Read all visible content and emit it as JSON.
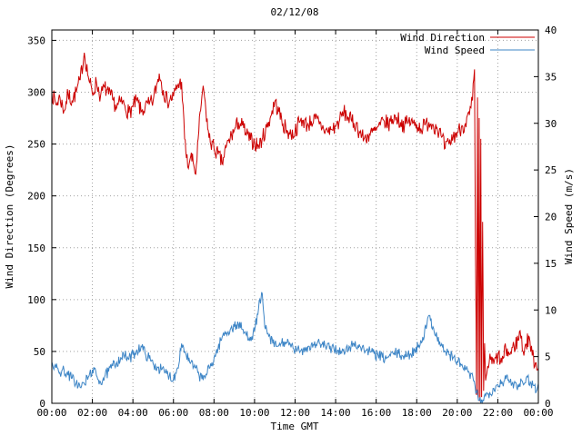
{
  "chart_data": {
    "type": "line",
    "title": "02/12/08",
    "xlabel": "Time GMT",
    "ylabel": "Wind Direction (Degrees)",
    "y2label": "Wind Speed (m/s)",
    "x_range_hours": [
      0,
      24
    ],
    "y_range": [
      0,
      360
    ],
    "y2_range": [
      0,
      40
    ],
    "y_ticks": [
      0,
      50,
      100,
      150,
      200,
      250,
      300,
      350
    ],
    "y2_ticks": [
      0,
      5,
      10,
      15,
      20,
      25,
      30,
      35,
      40
    ],
    "x_tick_hours": [
      0,
      2,
      4,
      6,
      8,
      10,
      12,
      14,
      16,
      18,
      20,
      22,
      24
    ],
    "x_tick_labels": [
      "00:00",
      "02:00",
      "04:00",
      "06:00",
      "08:00",
      "10:00",
      "12:00",
      "14:00",
      "16:00",
      "18:00",
      "20:00",
      "22:00",
      "00:00"
    ],
    "grid": true,
    "legend_position": "top-right",
    "background": "#ffffff",
    "grid_color": "#a0a0a0",
    "border_color": "#000000",
    "series": [
      {
        "name": "Wind Direction",
        "axis": "y1",
        "color": "#cc0000",
        "points": [
          [
            0,
            300
          ],
          [
            0.2,
            288
          ],
          [
            0.4,
            295
          ],
          [
            0.6,
            282
          ],
          [
            0.8,
            298
          ],
          [
            1.0,
            292
          ],
          [
            1.2,
            300
          ],
          [
            1.4,
            312
          ],
          [
            1.6,
            338
          ],
          [
            1.8,
            315
          ],
          [
            2.0,
            298
          ],
          [
            2.2,
            310
          ],
          [
            2.4,
            296
          ],
          [
            2.6,
            305
          ],
          [
            2.8,
            298
          ],
          [
            3.0,
            293
          ],
          [
            3.2,
            285
          ],
          [
            3.4,
            291
          ],
          [
            3.6,
            287
          ],
          [
            3.8,
            280
          ],
          [
            4.0,
            286
          ],
          [
            4.2,
            292
          ],
          [
            4.4,
            281
          ],
          [
            4.6,
            285
          ],
          [
            4.8,
            288
          ],
          [
            5.0,
            292
          ],
          [
            5.3,
            318
          ],
          [
            5.5,
            302
          ],
          [
            5.7,
            291
          ],
          [
            6.0,
            296
          ],
          [
            6.2,
            306
          ],
          [
            6.4,
            310
          ],
          [
            6.55,
            255
          ],
          [
            6.7,
            228
          ],
          [
            6.85,
            238
          ],
          [
            7.0,
            230
          ],
          [
            7.1,
            221
          ],
          [
            7.25,
            262
          ],
          [
            7.4,
            296
          ],
          [
            7.5,
            301
          ],
          [
            7.6,
            282
          ],
          [
            7.75,
            256
          ],
          [
            8.0,
            246
          ],
          [
            8.2,
            240
          ],
          [
            8.4,
            231
          ],
          [
            8.6,
            247
          ],
          [
            8.8,
            256
          ],
          [
            9.0,
            263
          ],
          [
            9.2,
            271
          ],
          [
            9.4,
            268
          ],
          [
            9.6,
            259
          ],
          [
            9.8,
            254
          ],
          [
            10.0,
            251
          ],
          [
            10.2,
            248
          ],
          [
            10.4,
            256
          ],
          [
            10.6,
            266
          ],
          [
            10.8,
            277
          ],
          [
            11.0,
            291
          ],
          [
            11.2,
            281
          ],
          [
            11.4,
            269
          ],
          [
            11.6,
            263
          ],
          [
            11.8,
            259
          ],
          [
            12.0,
            262
          ],
          [
            12.2,
            271
          ],
          [
            12.4,
            273
          ],
          [
            12.6,
            268
          ],
          [
            12.8,
            272
          ],
          [
            13.0,
            274
          ],
          [
            13.2,
            269
          ],
          [
            13.4,
            265
          ],
          [
            13.6,
            262
          ],
          [
            13.8,
            264
          ],
          [
            14.0,
            267
          ],
          [
            14.2,
            273
          ],
          [
            14.4,
            281
          ],
          [
            14.6,
            276
          ],
          [
            14.8,
            272
          ],
          [
            15.0,
            269
          ],
          [
            15.2,
            261
          ],
          [
            15.4,
            255
          ],
          [
            15.6,
            258
          ],
          [
            15.8,
            261
          ],
          [
            16.0,
            263
          ],
          [
            16.2,
            268
          ],
          [
            16.4,
            272
          ],
          [
            16.6,
            269
          ],
          [
            16.8,
            274
          ],
          [
            17.0,
            276
          ],
          [
            17.2,
            271
          ],
          [
            17.4,
            268
          ],
          [
            17.6,
            272
          ],
          [
            17.8,
            270
          ],
          [
            18.0,
            269
          ],
          [
            18.2,
            265
          ],
          [
            18.4,
            268
          ],
          [
            18.6,
            271
          ],
          [
            18.8,
            269
          ],
          [
            19.0,
            266
          ],
          [
            19.2,
            258
          ],
          [
            19.4,
            246
          ],
          [
            19.6,
            250
          ],
          [
            19.8,
            257
          ],
          [
            20.0,
            261
          ],
          [
            20.2,
            266
          ],
          [
            20.4,
            270
          ],
          [
            20.6,
            278
          ],
          [
            20.75,
            292
          ],
          [
            20.85,
            322
          ],
          [
            20.9,
            140
          ],
          [
            20.95,
            8
          ],
          [
            21.0,
            295
          ],
          [
            21.04,
            4
          ],
          [
            21.08,
            275
          ],
          [
            21.12,
            2
          ],
          [
            21.16,
            255
          ],
          [
            21.2,
            6
          ],
          [
            21.25,
            175
          ],
          [
            21.3,
            12
          ],
          [
            21.35,
            58
          ],
          [
            21.4,
            22
          ],
          [
            21.5,
            36
          ],
          [
            21.65,
            42
          ],
          [
            21.8,
            38
          ],
          [
            22.0,
            46
          ],
          [
            22.2,
            39
          ],
          [
            22.4,
            52
          ],
          [
            22.6,
            47
          ],
          [
            22.8,
            55
          ],
          [
            23.0,
            61
          ],
          [
            23.1,
            70
          ],
          [
            23.25,
            50
          ],
          [
            23.4,
            57
          ],
          [
            23.55,
            64
          ],
          [
            23.7,
            46
          ],
          [
            23.85,
            39
          ],
          [
            24.0,
            34
          ]
        ]
      },
      {
        "name": "Wind Speed",
        "axis": "y2",
        "color": "#3d85c6",
        "points": [
          [
            0,
            4.4
          ],
          [
            0.2,
            3.8
          ],
          [
            0.4,
            3.3
          ],
          [
            0.6,
            3.6
          ],
          [
            0.8,
            3.0
          ],
          [
            1.0,
            2.7
          ],
          [
            1.2,
            2.2
          ],
          [
            1.4,
            1.7
          ],
          [
            1.6,
            2.1
          ],
          [
            1.8,
            2.8
          ],
          [
            2.0,
            3.6
          ],
          [
            2.2,
            3.0
          ],
          [
            2.4,
            2.3
          ],
          [
            2.6,
            2.8
          ],
          [
            2.8,
            3.4
          ],
          [
            3.0,
            4.0
          ],
          [
            3.2,
            4.4
          ],
          [
            3.4,
            4.9
          ],
          [
            3.6,
            5.1
          ],
          [
            3.8,
            4.7
          ],
          [
            4.0,
            5.2
          ],
          [
            4.2,
            5.7
          ],
          [
            4.4,
            6.1
          ],
          [
            4.6,
            5.4
          ],
          [
            4.8,
            4.8
          ],
          [
            5.0,
            4.2
          ],
          [
            5.2,
            3.9
          ],
          [
            5.4,
            3.6
          ],
          [
            5.6,
            3.3
          ],
          [
            5.8,
            3.0
          ],
          [
            6.0,
            2.6
          ],
          [
            6.2,
            3.8
          ],
          [
            6.4,
            6.4
          ],
          [
            6.6,
            5.4
          ],
          [
            6.8,
            4.4
          ],
          [
            7.0,
            3.9
          ],
          [
            7.2,
            3.3
          ],
          [
            7.4,
            2.6
          ],
          [
            7.6,
            3.1
          ],
          [
            7.8,
            3.8
          ],
          [
            8.0,
            4.8
          ],
          [
            8.2,
            5.9
          ],
          [
            8.4,
            7.1
          ],
          [
            8.6,
            7.6
          ],
          [
            8.8,
            7.9
          ],
          [
            9.0,
            8.2
          ],
          [
            9.2,
            8.5
          ],
          [
            9.4,
            7.9
          ],
          [
            9.6,
            7.3
          ],
          [
            9.8,
            7.1
          ],
          [
            10.0,
            7.7
          ],
          [
            10.2,
            10.2
          ],
          [
            10.35,
            11.9
          ],
          [
            10.5,
            8.2
          ],
          [
            10.7,
            7.2
          ],
          [
            10.9,
            6.4
          ],
          [
            11.1,
            6.1
          ],
          [
            11.3,
            6.4
          ],
          [
            11.5,
            6.6
          ],
          [
            11.7,
            6.2
          ],
          [
            11.9,
            5.9
          ],
          [
            12.1,
            5.6
          ],
          [
            12.3,
            5.7
          ],
          [
            12.5,
            5.9
          ],
          [
            12.7,
            6.1
          ],
          [
            12.9,
            6.3
          ],
          [
            13.1,
            6.5
          ],
          [
            13.3,
            6.3
          ],
          [
            13.5,
            6.1
          ],
          [
            13.7,
            5.8
          ],
          [
            13.9,
            6.0
          ],
          [
            14.1,
            5.7
          ],
          [
            14.3,
            5.4
          ],
          [
            14.5,
            5.6
          ],
          [
            14.7,
            6.0
          ],
          [
            14.9,
            6.4
          ],
          [
            15.1,
            6.2
          ],
          [
            15.3,
            5.9
          ],
          [
            15.5,
            5.7
          ],
          [
            15.7,
            5.5
          ],
          [
            15.9,
            5.3
          ],
          [
            16.1,
            5.1
          ],
          [
            16.3,
            4.9
          ],
          [
            16.5,
            4.8
          ],
          [
            16.7,
            5.1
          ],
          [
            16.9,
            5.4
          ],
          [
            17.1,
            5.3
          ],
          [
            17.3,
            5.1
          ],
          [
            17.5,
            5.0
          ],
          [
            17.7,
            5.3
          ],
          [
            17.9,
            5.7
          ],
          [
            18.1,
            6.2
          ],
          [
            18.3,
            7.1
          ],
          [
            18.5,
            8.4
          ],
          [
            18.65,
            9.4
          ],
          [
            18.8,
            8.2
          ],
          [
            19.0,
            7.1
          ],
          [
            19.2,
            6.2
          ],
          [
            19.4,
            5.6
          ],
          [
            19.6,
            5.2
          ],
          [
            19.8,
            4.9
          ],
          [
            20.0,
            4.5
          ],
          [
            20.2,
            4.1
          ],
          [
            20.4,
            3.6
          ],
          [
            20.6,
            3.2
          ],
          [
            20.8,
            2.4
          ],
          [
            20.95,
            1.2
          ],
          [
            21.05,
            0.3
          ],
          [
            21.2,
            0.4
          ],
          [
            21.4,
            0.8
          ],
          [
            21.6,
            1.2
          ],
          [
            21.8,
            1.6
          ],
          [
            22.0,
            2.0
          ],
          [
            22.2,
            2.3
          ],
          [
            22.4,
            2.6
          ],
          [
            22.6,
            2.3
          ],
          [
            22.8,
            2.1
          ],
          [
            23.0,
            2.0
          ],
          [
            23.2,
            2.4
          ],
          [
            23.4,
            2.7
          ],
          [
            23.6,
            2.3
          ],
          [
            23.8,
            1.9
          ],
          [
            23.9,
            1.3
          ],
          [
            24.0,
            2.1
          ]
        ]
      }
    ],
    "render_noise": {
      "seed": 7,
      "step_minutes": 2,
      "amplitude": {
        "Wind Direction": 8,
        "Wind Speed": 0.6
      }
    }
  }
}
